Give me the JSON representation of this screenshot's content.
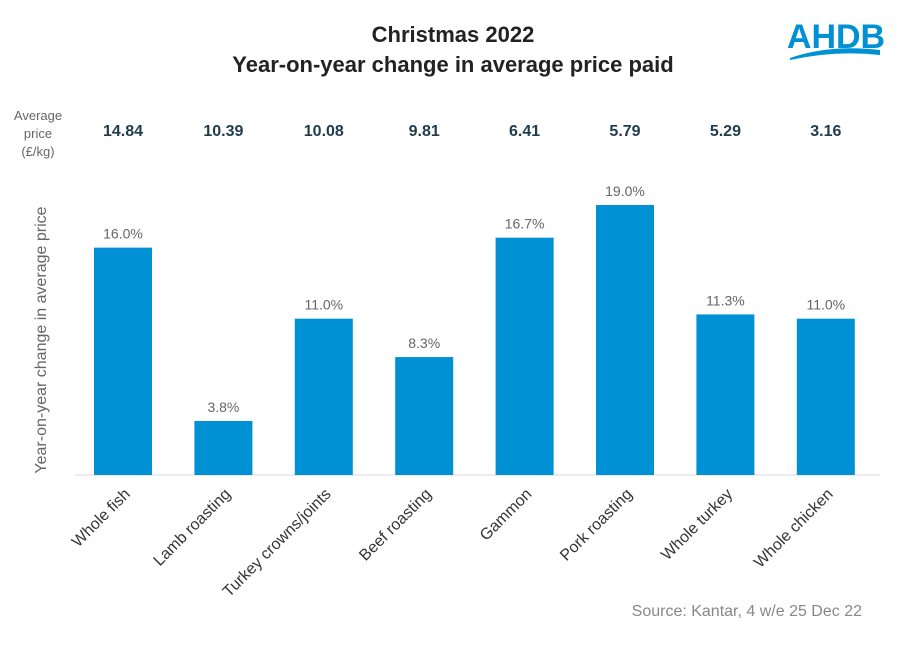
{
  "logo": {
    "text": "AHDB",
    "color": "#0090d4"
  },
  "chart_data": {
    "type": "bar",
    "title": "Christmas 2022",
    "subtitle": "Year-on-year change in average price paid",
    "ylabel": "Year-on-year change in average price",
    "xlabel": "",
    "ylim": [
      0,
      19
    ],
    "grid": false,
    "categories": [
      "Whole fish",
      "Lamb roasting",
      "Turkey crowns/joints",
      "Beef roasting",
      "Gammon",
      "Pork roasting",
      "Whole turkey",
      "Whole chicken"
    ],
    "values": [
      16.0,
      3.8,
      11.0,
      8.3,
      16.7,
      19.0,
      11.3,
      11.0
    ],
    "data_labels": [
      "16.0%",
      "3.8%",
      "11.0%",
      "8.3%",
      "16.7%",
      "19.0%",
      "11.3%",
      "11.0%"
    ],
    "bar_color": "#0090d4",
    "avg_price_header": [
      "Average",
      "price",
      "(£/kg)"
    ],
    "avg_prices": [
      "14.84",
      "10.39",
      "10.08",
      "9.81",
      "6.41",
      "5.79",
      "5.29",
      "3.16"
    ],
    "source": "Source: Kantar, 4 w/e 25 Dec 22"
  }
}
